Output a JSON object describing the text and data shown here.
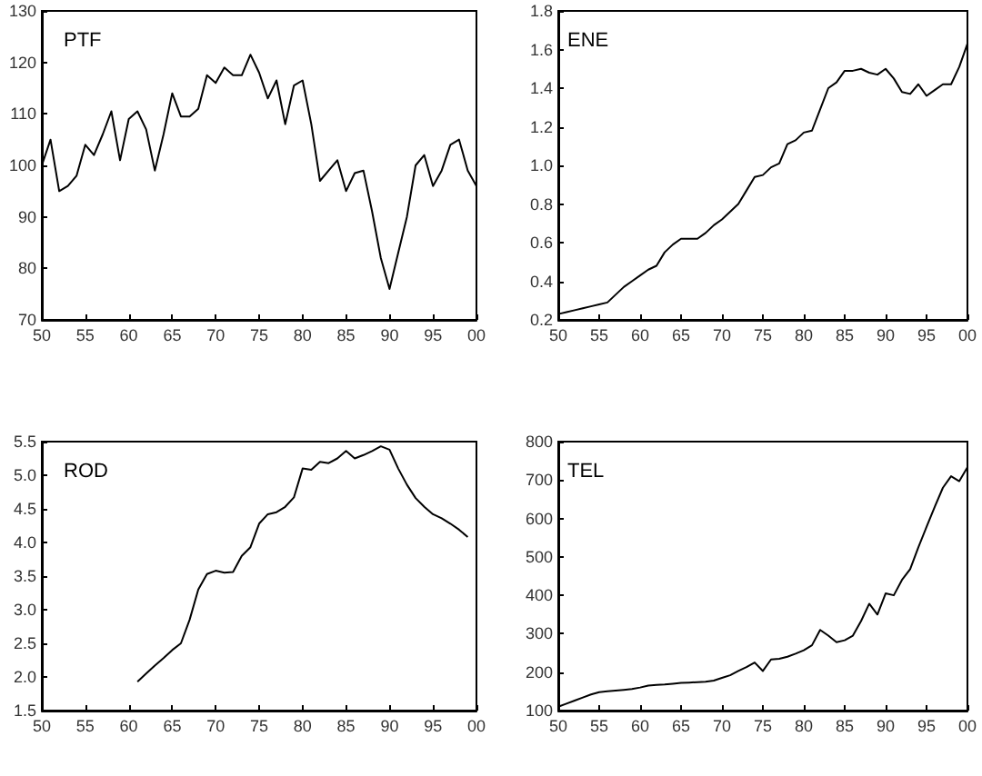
{
  "chart_data": [
    {
      "type": "line",
      "title": "PTF",
      "grid": false,
      "marker": "none",
      "line_style": "solid",
      "x": [
        1950,
        1951,
        1952,
        1953,
        1954,
        1955,
        1956,
        1957,
        1958,
        1959,
        1960,
        1961,
        1962,
        1963,
        1964,
        1965,
        1966,
        1967,
        1968,
        1969,
        1970,
        1971,
        1972,
        1973,
        1974,
        1975,
        1976,
        1977,
        1978,
        1979,
        1980,
        1981,
        1982,
        1983,
        1984,
        1985,
        1986,
        1987,
        1988,
        1989,
        1990,
        1991,
        1992,
        1993,
        1994,
        1995,
        1996,
        1997,
        1998,
        1999,
        2000
      ],
      "series": [
        {
          "color": "#000000",
          "values": [
            100,
            105,
            95,
            96,
            98,
            104,
            102,
            106,
            110.5,
            101,
            109,
            110.5,
            107,
            99,
            106,
            114,
            109.5,
            109.5,
            111,
            117.5,
            116,
            119,
            117.5,
            117.5,
            121.5,
            118,
            113,
            116.5,
            108,
            115.5,
            116.5,
            108,
            97,
            99,
            101,
            95,
            98.5,
            99,
            91,
            82,
            76,
            83,
            90,
            100,
            102,
            96,
            99,
            104,
            105,
            99,
            96
          ]
        }
      ],
      "xlim": [
        1950,
        2000
      ],
      "xticks": [
        {
          "value": 1950,
          "label": "50"
        },
        {
          "value": 1955,
          "label": "55"
        },
        {
          "value": 1960,
          "label": "60"
        },
        {
          "value": 1965,
          "label": "65"
        },
        {
          "value": 1970,
          "label": "70"
        },
        {
          "value": 1975,
          "label": "75"
        },
        {
          "value": 1980,
          "label": "80"
        },
        {
          "value": 1985,
          "label": "85"
        },
        {
          "value": 1990,
          "label": "90"
        },
        {
          "value": 1995,
          "label": "95"
        },
        {
          "value": 2000,
          "label": "00"
        }
      ],
      "ylim": [
        70,
        130
      ],
      "yticks": [
        70,
        80,
        90,
        100,
        110,
        120,
        130
      ]
    },
    {
      "type": "line",
      "title": "ENE",
      "grid": false,
      "marker": "none",
      "line_style": "solid",
      "x": [
        1950,
        1951,
        1952,
        1953,
        1954,
        1955,
        1956,
        1957,
        1958,
        1959,
        1960,
        1961,
        1962,
        1963,
        1964,
        1965,
        1966,
        1967,
        1968,
        1969,
        1970,
        1971,
        1972,
        1973,
        1974,
        1975,
        1976,
        1977,
        1978,
        1979,
        1980,
        1981,
        1982,
        1983,
        1984,
        1985,
        1986,
        1987,
        1988,
        1989,
        1990,
        1991,
        1992,
        1993,
        1994,
        1995,
        1996,
        1997,
        1998,
        1999,
        2000
      ],
      "series": [
        {
          "color": "#000000",
          "values": [
            0.23,
            0.24,
            0.25,
            0.26,
            0.27,
            0.28,
            0.29,
            0.33,
            0.37,
            0.4,
            0.43,
            0.46,
            0.48,
            0.55,
            0.59,
            0.62,
            0.62,
            0.62,
            0.65,
            0.69,
            0.72,
            0.76,
            0.8,
            0.87,
            0.94,
            0.95,
            0.99,
            1.01,
            1.11,
            1.13,
            1.17,
            1.18,
            1.29,
            1.4,
            1.43,
            1.49,
            1.49,
            1.5,
            1.48,
            1.47,
            1.5,
            1.45,
            1.38,
            1.37,
            1.42,
            1.36,
            1.39,
            1.42,
            1.42,
            1.51,
            1.63
          ]
        }
      ],
      "xlim": [
        1950,
        2000
      ],
      "xticks": [
        {
          "value": 1950,
          "label": "50"
        },
        {
          "value": 1955,
          "label": "55"
        },
        {
          "value": 1960,
          "label": "60"
        },
        {
          "value": 1965,
          "label": "65"
        },
        {
          "value": 1970,
          "label": "70"
        },
        {
          "value": 1975,
          "label": "75"
        },
        {
          "value": 1980,
          "label": "80"
        },
        {
          "value": 1985,
          "label": "85"
        },
        {
          "value": 1990,
          "label": "90"
        },
        {
          "value": 1995,
          "label": "95"
        },
        {
          "value": 2000,
          "label": "00"
        }
      ],
      "ylim": [
        0.2,
        1.8
      ],
      "yticks": [
        0.2,
        0.4,
        0.6,
        0.8,
        {
          "value": 1,
          "label": "1.0"
        },
        1.2,
        1.4,
        1.6,
        1.8
      ]
    },
    {
      "type": "line",
      "title": "ROD",
      "grid": false,
      "marker": "none",
      "line_style": "solid",
      "x": [
        1961,
        1962,
        1963,
        1964,
        1965,
        1966,
        1967,
        1968,
        1969,
        1970,
        1971,
        1972,
        1973,
        1974,
        1975,
        1976,
        1977,
        1978,
        1979,
        1980,
        1981,
        1982,
        1983,
        1984,
        1985,
        1986,
        1987,
        1988,
        1989,
        1990,
        1991,
        1992,
        1993,
        1994,
        1995,
        1996,
        1997,
        1998,
        1999
      ],
      "series": [
        {
          "color": "#000000",
          "values": [
            1.93,
            2.05,
            2.17,
            2.28,
            2.4,
            2.5,
            2.85,
            3.3,
            3.53,
            3.58,
            3.55,
            3.56,
            3.8,
            3.93,
            4.28,
            4.42,
            4.45,
            4.53,
            4.67,
            5.1,
            5.08,
            5.2,
            5.18,
            5.25,
            5.36,
            5.25,
            5.3,
            5.36,
            5.43,
            5.38,
            5.1,
            4.86,
            4.66,
            4.53,
            4.42,
            4.36,
            4.28,
            4.19,
            4.08
          ]
        }
      ],
      "xlim": [
        1950,
        2000
      ],
      "xticks": [
        {
          "value": 1950,
          "label": "50"
        },
        {
          "value": 1955,
          "label": "55"
        },
        {
          "value": 1960,
          "label": "60"
        },
        {
          "value": 1965,
          "label": "65"
        },
        {
          "value": 1970,
          "label": "70"
        },
        {
          "value": 1975,
          "label": "75"
        },
        {
          "value": 1980,
          "label": "80"
        },
        {
          "value": 1985,
          "label": "85"
        },
        {
          "value": 1990,
          "label": "90"
        },
        {
          "value": 1995,
          "label": "95"
        },
        {
          "value": 2000,
          "label": "00"
        }
      ],
      "ylim": [
        1.5,
        5.5
      ],
      "yticks": [
        1.5,
        {
          "value": 2,
          "label": "2.0"
        },
        2.5,
        {
          "value": 3,
          "label": "3.0"
        },
        3.5,
        {
          "value": 4,
          "label": "4.0"
        },
        4.5,
        {
          "value": 5,
          "label": "5.0"
        },
        5.5
      ]
    },
    {
      "type": "line",
      "title": "TEL",
      "grid": false,
      "marker": "none",
      "line_style": "solid",
      "x": [
        1950,
        1951,
        1952,
        1953,
        1954,
        1955,
        1956,
        1957,
        1958,
        1959,
        1960,
        1961,
        1962,
        1963,
        1964,
        1965,
        1966,
        1967,
        1968,
        1969,
        1970,
        1971,
        1972,
        1973,
        1974,
        1975,
        1976,
        1977,
        1978,
        1979,
        1980,
        1981,
        1982,
        1983,
        1984,
        1985,
        1986,
        1987,
        1988,
        1989,
        1990,
        1991,
        1992,
        1993,
        1994,
        1995,
        1996,
        1997,
        1998,
        1999,
        2000
      ],
      "series": [
        {
          "color": "#000000",
          "values": [
            110,
            118,
            126,
            134,
            142,
            148,
            150,
            152,
            154,
            156,
            160,
            165,
            167,
            168,
            170,
            172,
            173,
            174,
            175,
            178,
            185,
            192,
            203,
            213,
            225,
            203,
            233,
            235,
            240,
            248,
            257,
            270,
            310,
            295,
            278,
            283,
            295,
            333,
            378,
            350,
            405,
            400,
            440,
            468,
            525,
            578,
            630,
            680,
            710,
            697,
            733
          ]
        }
      ],
      "xlim": [
        1950,
        2000
      ],
      "xticks": [
        {
          "value": 1950,
          "label": "50"
        },
        {
          "value": 1955,
          "label": "55"
        },
        {
          "value": 1960,
          "label": "60"
        },
        {
          "value": 1965,
          "label": "65"
        },
        {
          "value": 1970,
          "label": "70"
        },
        {
          "value": 1975,
          "label": "75"
        },
        {
          "value": 1980,
          "label": "80"
        },
        {
          "value": 1985,
          "label": "85"
        },
        {
          "value": 1990,
          "label": "90"
        },
        {
          "value": 1995,
          "label": "95"
        },
        {
          "value": 2000,
          "label": "00"
        }
      ],
      "ylim": [
        100,
        800
      ],
      "yticks": [
        100,
        200,
        300,
        400,
        500,
        600,
        700,
        800
      ]
    }
  ]
}
